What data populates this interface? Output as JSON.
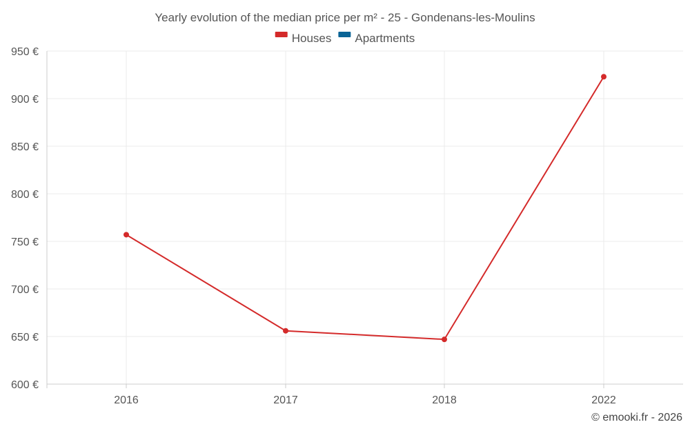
{
  "chart_data": {
    "type": "line",
    "title": "Yearly evolution of the median price per m² - 25 - Gondenans-les-Moulins",
    "categories": [
      "2016",
      "2017",
      "2018",
      "2022"
    ],
    "series": [
      {
        "name": "Houses",
        "color": "#d42a2a",
        "values": [
          757,
          656,
          647,
          923
        ]
      },
      {
        "name": "Apartments",
        "color": "#0a6496",
        "values": [
          null,
          null,
          null,
          null
        ]
      }
    ],
    "ylim": [
      600,
      950
    ],
    "yticks": [
      600,
      650,
      700,
      750,
      800,
      850,
      900,
      950
    ],
    "ytick_labels": [
      "600 €",
      "650 €",
      "700 €",
      "750 €",
      "800 €",
      "850 €",
      "900 €",
      "950 €"
    ],
    "xlabel": "",
    "ylabel": "",
    "grid": true,
    "legend_position": "top-center"
  },
  "credit": "© emooki.fr - 2026",
  "colors": {
    "grid": "#ebebeb",
    "axis": "#cccccc",
    "text": "#555555"
  }
}
